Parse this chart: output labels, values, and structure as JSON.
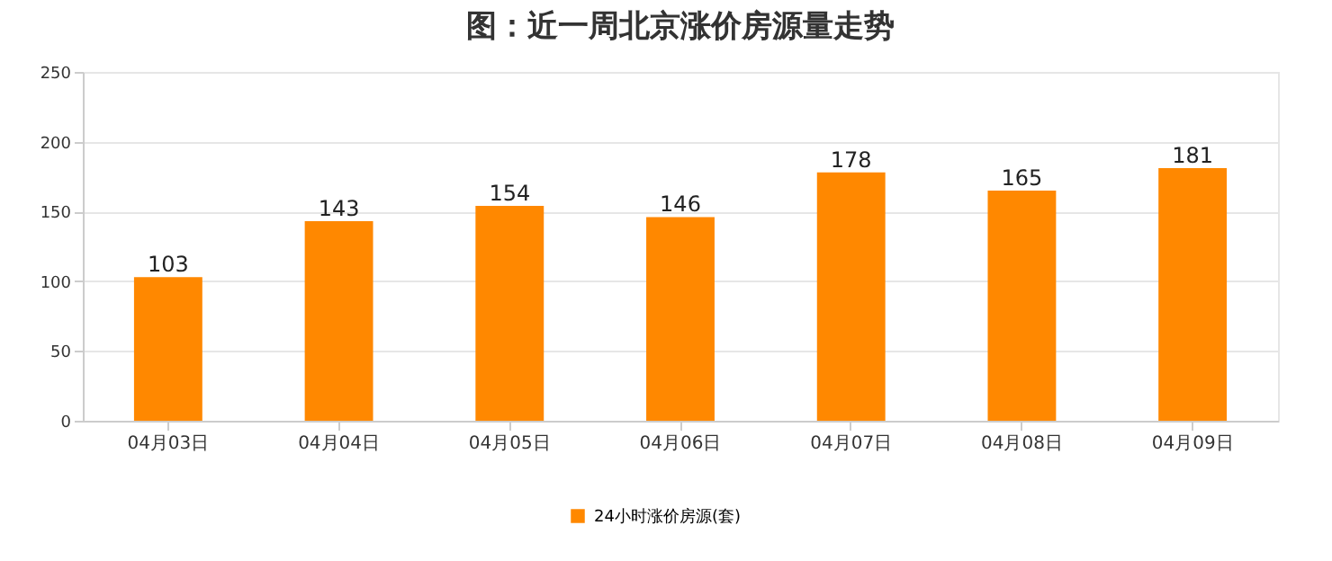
{
  "chart_data": {
    "type": "bar",
    "title": "图：近一周北京涨价房源量走势",
    "categories": [
      "04月03日",
      "04月04日",
      "04月05日",
      "04月06日",
      "04月07日",
      "04月08日",
      "04月09日"
    ],
    "series": [
      {
        "name": "24小时涨价房源(套)",
        "color": "#ff8800",
        "values": [
          103,
          143,
          154,
          146,
          178,
          165,
          181
        ]
      }
    ],
    "ylim": [
      0,
      250
    ],
    "yticks": [
      0,
      50,
      100,
      150,
      200,
      250
    ],
    "grid": "y",
    "legend": "bottom",
    "data_labels": true
  }
}
